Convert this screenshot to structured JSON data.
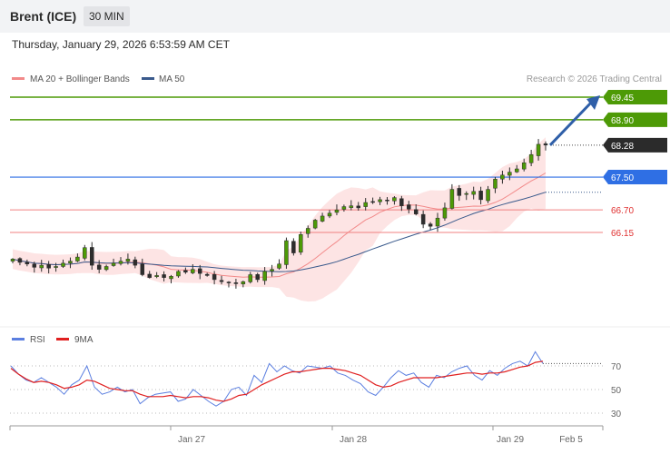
{
  "header": {
    "symbol": "Brent (ICE)",
    "interval": "30 MIN",
    "datetime": "Thursday, January 29, 2026 6:53:59 AM CET"
  },
  "legend": {
    "ma20": "MA 20 + Bollinger Bands",
    "ma50": "MA 50",
    "copyright": "Research © 2026 Trading Central",
    "rsi": "RSI",
    "ma9": "9MA"
  },
  "colors": {
    "ma20": "#f28a8a",
    "ma50": "#3a5a8c",
    "bands": "#fde1e1",
    "resistance": "#4d9a06",
    "pivot": "#2f6fe4",
    "support": "#f08080",
    "current": "#2b2b2b",
    "arrow": "#2f5fa8",
    "rsi": "#5b7fe0",
    "rsi_ma": "#e02020",
    "candle": "#2d2d2d",
    "candle_up": "#4d9a06"
  },
  "chart_data": [
    {
      "type": "candlestick",
      "title": "Brent (ICE)",
      "interval": "30 MIN",
      "y_range": [
        65.45,
        69.65
      ],
      "price_levels": [
        {
          "value": 69.45,
          "label": "69.45",
          "kind": "resistance"
        },
        {
          "value": 68.9,
          "label": "68.90",
          "kind": "resistance"
        },
        {
          "value": 68.28,
          "label": "68.28",
          "kind": "current"
        },
        {
          "value": 67.5,
          "label": "67.50",
          "kind": "pivot"
        },
        {
          "value": 66.7,
          "label": "66.70",
          "kind": "support"
        },
        {
          "value": 66.15,
          "label": "66.15",
          "kind": "support"
        }
      ],
      "x_tick_labels": [
        "Jan 27",
        "Jan 28",
        "Jan 29",
        "Feb 5"
      ],
      "close": [
        65.5,
        65.42,
        65.38,
        65.3,
        65.35,
        65.28,
        65.32,
        65.4,
        65.45,
        65.55,
        65.78,
        65.35,
        65.25,
        65.32,
        65.4,
        65.45,
        65.5,
        65.35,
        65.12,
        65.05,
        65.1,
        65.05,
        65.08,
        65.2,
        65.18,
        65.25,
        65.15,
        65.1,
        65.0,
        64.95,
        64.92,
        64.9,
        64.95,
        65.12,
        65.0,
        65.2,
        65.25,
        65.38,
        65.95,
        65.65,
        66.1,
        66.25,
        66.45,
        66.55,
        66.62,
        66.7,
        66.78,
        66.8,
        66.75,
        66.88,
        66.9,
        66.95,
        66.92,
        67.0,
        66.8,
        66.72,
        66.6,
        66.35,
        66.3,
        66.5,
        66.75,
        67.2,
        67.05,
        67.1,
        67.15,
        66.95,
        67.2,
        67.45,
        67.55,
        67.62,
        67.7,
        67.85,
        68.05,
        68.3,
        68.28
      ],
      "annotation": {
        "type": "arrow",
        "from": 68.28,
        "to": 69.45
      }
    },
    {
      "type": "line",
      "title": "RSI",
      "series": [
        {
          "name": "RSI",
          "values": [
            70,
            63,
            58,
            56,
            60,
            56,
            52,
            46,
            54,
            58,
            70,
            52,
            46,
            48,
            52,
            48,
            50,
            38,
            43,
            46,
            47,
            48,
            40,
            42,
            50,
            45,
            40,
            36,
            40,
            50,
            52,
            45,
            62,
            56,
            72,
            65,
            70,
            66,
            64,
            70,
            69,
            68,
            70,
            64,
            62,
            58,
            55,
            48,
            45,
            52,
            60,
            66,
            62,
            64,
            56,
            52,
            62,
            60,
            65,
            68,
            70,
            62,
            58,
            66,
            62,
            68,
            72,
            74,
            70,
            82,
            72
          ]
        },
        {
          "name": "9MA",
          "values": [
            68,
            63,
            59,
            56,
            57,
            56,
            54,
            51,
            52,
            54,
            58,
            57,
            54,
            51,
            50,
            49,
            49,
            46,
            44,
            44,
            44,
            45,
            44,
            43,
            44,
            44,
            43,
            41,
            40,
            42,
            45,
            46,
            50,
            54,
            57,
            60,
            63,
            65,
            65,
            66,
            67,
            68,
            68,
            67,
            66,
            64,
            62,
            58,
            54,
            52,
            53,
            56,
            58,
            60,
            60,
            60,
            60,
            61,
            62,
            63,
            64,
            64,
            63,
            64,
            64,
            65,
            67,
            69,
            70,
            73,
            74
          ]
        }
      ],
      "y_ticks": [
        70,
        50,
        30
      ]
    }
  ]
}
